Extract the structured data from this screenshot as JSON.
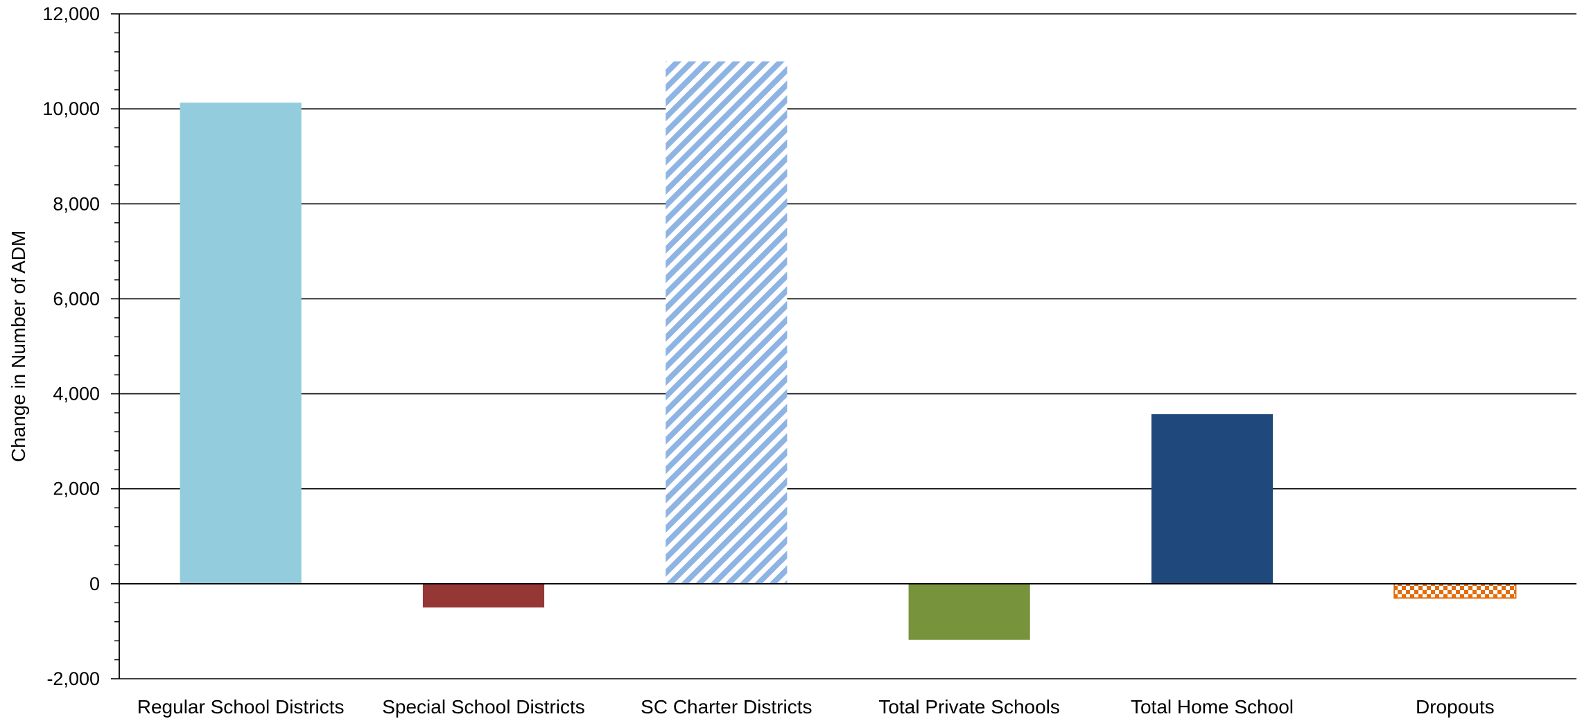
{
  "chart_data": {
    "type": "bar",
    "title": "",
    "xlabel": "",
    "ylabel": "Change in Number of ADM",
    "ylim": [
      -2000,
      12000
    ],
    "ytick_step": 2000,
    "yticks": [
      "-2,000",
      "0",
      "2,000",
      "4,000",
      "6,000",
      "8,000",
      "10,000",
      "12,000"
    ],
    "grid": true,
    "legend": "none",
    "categories": [
      "Regular School Districts",
      "Special School Districts",
      "SC Charter Districts",
      "Total Private Schools",
      "Total Home School",
      "Dropouts"
    ],
    "values": [
      10130,
      -500,
      11000,
      -1180,
      3570,
      -300
    ],
    "bar_styles": [
      {
        "fill": "#93CDDD",
        "pattern": "solid"
      },
      {
        "fill": "#953735",
        "pattern": "solid"
      },
      {
        "fill": "#8EB4E3",
        "pattern": "diagonal-stripes"
      },
      {
        "fill": "#77933C",
        "pattern": "solid"
      },
      {
        "fill": "#1F497D",
        "pattern": "solid"
      },
      {
        "fill": "#E46C0A",
        "pattern": "checkerboard"
      }
    ]
  }
}
